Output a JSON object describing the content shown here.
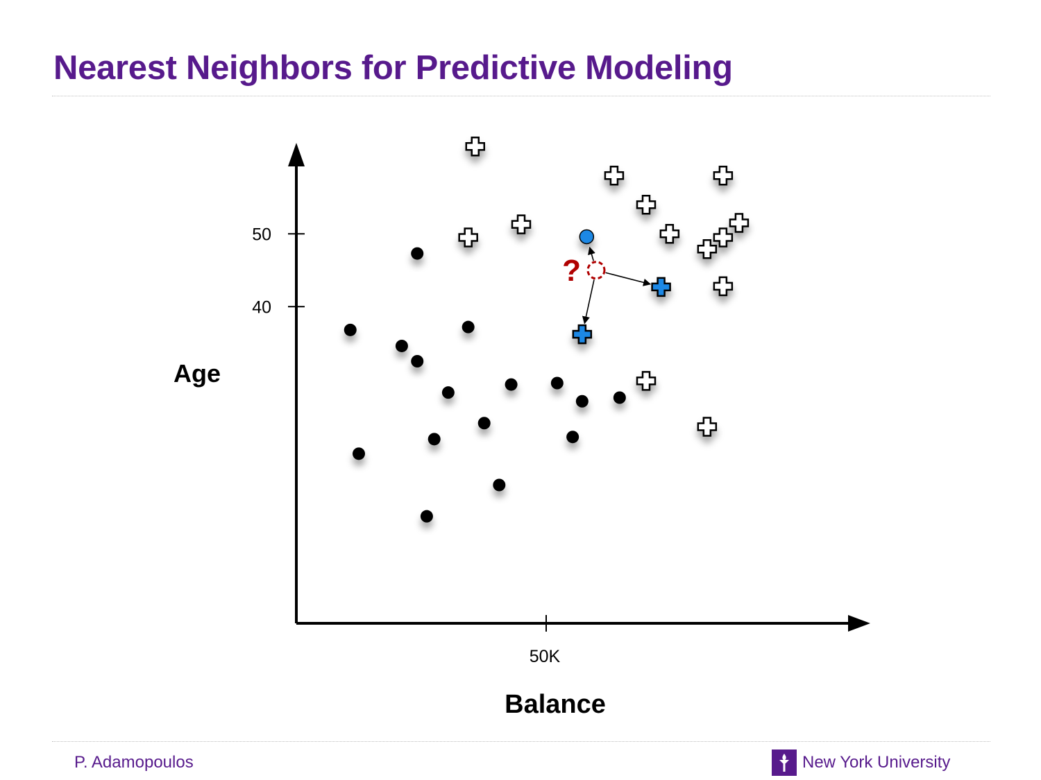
{
  "slide": {
    "title": "Nearest Neighbors for Predictive Modeling",
    "author": "P. Adamopoulos",
    "organization": "New York University"
  },
  "colors": {
    "title": "#571a8c",
    "dot": "#000000",
    "highlight": "#1e88e5",
    "query": "#b00000"
  },
  "chart_data": {
    "type": "scatter",
    "xlabel": "Balance",
    "ylabel": "Age",
    "x_ticks": [
      {
        "value": 50,
        "label": "50K"
      }
    ],
    "y_ticks": [
      {
        "value": 50,
        "label": "50"
      },
      {
        "value": 40,
        "label": "40"
      }
    ],
    "xlim": [
      0,
      115
    ],
    "ylim": [
      -3.5,
      62
    ],
    "grid": false,
    "legend": "none",
    "query_point": {
      "x": 60,
      "y": 45,
      "label": "?"
    },
    "series": [
      {
        "class": "dot",
        "points": [
          {
            "x": 24.2,
            "y": 47.3
          },
          {
            "x": 10.8,
            "y": 36.8
          },
          {
            "x": 21.1,
            "y": 34.6
          },
          {
            "x": 24.2,
            "y": 32.5
          },
          {
            "x": 34.4,
            "y": 37.2
          },
          {
            "x": 30.4,
            "y": 28.2
          },
          {
            "x": 43.0,
            "y": 29.3
          },
          {
            "x": 52.2,
            "y": 29.5
          },
          {
            "x": 57.2,
            "y": 27.0
          },
          {
            "x": 64.7,
            "y": 27.5
          },
          {
            "x": 37.6,
            "y": 24.0
          },
          {
            "x": 27.6,
            "y": 21.8
          },
          {
            "x": 12.5,
            "y": 19.8
          },
          {
            "x": 55.3,
            "y": 22.1
          },
          {
            "x": 40.6,
            "y": 15.5
          },
          {
            "x": 26.1,
            "y": 11.2
          }
        ]
      },
      {
        "class": "plus",
        "points": [
          {
            "x": 35.8,
            "y": 62.0
          },
          {
            "x": 63.6,
            "y": 58.0
          },
          {
            "x": 85.4,
            "y": 58.0
          },
          {
            "x": 70.0,
            "y": 54.0
          },
          {
            "x": 88.6,
            "y": 51.5
          },
          {
            "x": 45.0,
            "y": 51.3
          },
          {
            "x": 34.4,
            "y": 49.5
          },
          {
            "x": 74.7,
            "y": 50.0
          },
          {
            "x": 85.4,
            "y": 49.5
          },
          {
            "x": 82.2,
            "y": 47.9
          },
          {
            "x": 85.4,
            "y": 42.8
          },
          {
            "x": 70.0,
            "y": 29.8
          },
          {
            "x": 82.2,
            "y": 23.5
          }
        ]
      },
      {
        "class": "highlight",
        "points": [
          {
            "x": 58.1,
            "y": 49.6,
            "shape": "dot"
          },
          {
            "x": 73.0,
            "y": 42.7,
            "shape": "plus"
          },
          {
            "x": 57.2,
            "y": 36.2,
            "shape": "plus"
          }
        ]
      }
    ]
  }
}
